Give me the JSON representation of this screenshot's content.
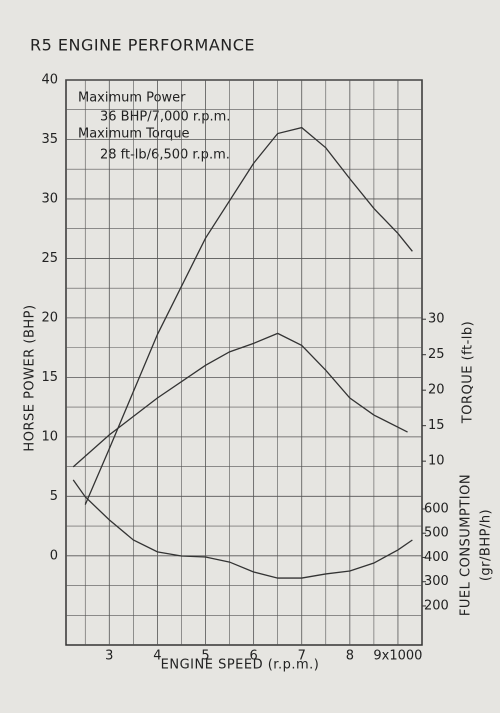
{
  "chart_data": {
    "type": "line",
    "title": "R5   ENGINE PERFORMANCE",
    "annotations": [
      "Maximum Power",
      "36 BHP/7,000 r.p.m.",
      "Maximum Torque",
      "28 ft-lb/6,500 r.p.m."
    ],
    "x_label": "ENGINE SPEED (r.p.m.)",
    "y_label": "HORSE POWER (BHP)",
    "y2_label": "TORQUE (ft-lb)",
    "y3_label": [
      "FUEL CONSUMPTION",
      "(gr/BHP/h)"
    ],
    "xlim": [
      2.1,
      9.5
    ],
    "xticks": [
      3,
      4,
      5,
      6,
      7,
      8,
      {
        "value": 9,
        "label": "9x1000"
      }
    ],
    "ylim": [
      -7.5,
      40
    ],
    "yticks": [
      0,
      5,
      10,
      15,
      20,
      25,
      30,
      35,
      40
    ],
    "y2lim": [
      -15.9,
      63.7
    ],
    "y2ticks": [
      10,
      15,
      20,
      25,
      30
    ],
    "y3lim": [
      39,
      2369
    ],
    "y3ticks": [
      200,
      300,
      400,
      500,
      600
    ],
    "grid": true,
    "series": [
      {
        "name": "Horse Power",
        "color": "#333333",
        "x": [
          2.5,
          3,
          4,
          5,
          6,
          6.5,
          7,
          7.5,
          8,
          8.5,
          9,
          9.3
        ],
        "values": [
          4.3,
          9,
          18.6,
          26.7,
          33,
          35.5,
          36,
          34.3,
          31.7,
          29.2,
          27.1,
          25.6
        ]
      },
      {
        "name": "Torque",
        "color": "#333333",
        "axis": "y2",
        "x": [
          2.25,
          3,
          4,
          5,
          5.5,
          6,
          6.5,
          7,
          7.5,
          8,
          8.5,
          9.2
        ],
        "values": [
          9.2,
          13.7,
          18.9,
          23.5,
          25.4,
          26.6,
          28,
          26.3,
          22.8,
          18.9,
          16.5,
          14.1
        ]
      },
      {
        "name": "Fuel Consumption",
        "color": "#333333",
        "axis": "y3",
        "x": [
          2.25,
          2.5,
          3,
          3.5,
          4,
          4.5,
          5,
          5.5,
          6,
          6.5,
          7,
          7.5,
          8,
          8.5,
          9,
          9.3
        ],
        "values": [
          720,
          650,
          555,
          472,
          423,
          406,
          402,
          381,
          340,
          315,
          315,
          332,
          344,
          377,
          431,
          472
        ]
      }
    ]
  }
}
